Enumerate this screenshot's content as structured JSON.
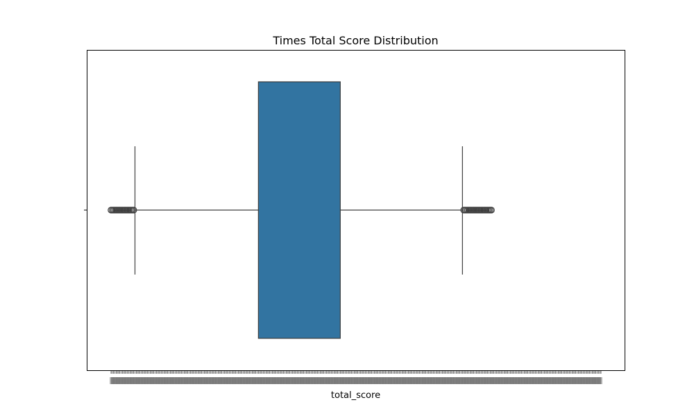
{
  "chart_data": {
    "type": "box",
    "title": "Times Total Score Distribution",
    "xlabel": "total_score",
    "ylabel": "",
    "orientation": "horizontal",
    "grid": false,
    "legend": "none",
    "series": [
      {
        "color": "#3274a1",
        "edge_color": "#3d3d3d"
      }
    ],
    "x_categories_count": 390,
    "whisker_low_index": 19,
    "q1_index": 117,
    "q3_index": 182,
    "whisker_high_index": 279,
    "outliers_low_index_range": [
      0,
      18
    ],
    "outliers_high_index_range": [
      280,
      302
    ]
  }
}
